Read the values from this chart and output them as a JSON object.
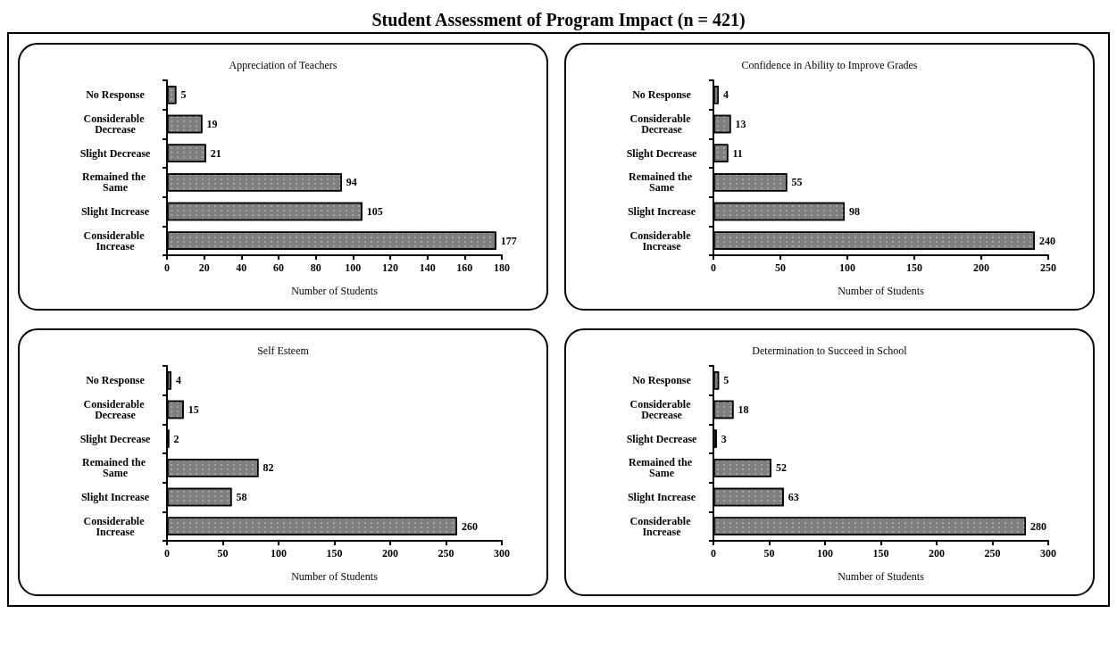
{
  "chart_data": [
    {
      "type": "bar",
      "orientation": "horizontal",
      "annotations": [
        "Student Assessment of Program Impact (n = 421)"
      ],
      "title": "Appreciation of Teachers",
      "xlabel": "Number of Students",
      "categories": [
        "No Response",
        "Considerable Decrease",
        "Slight Decrease",
        "Remained the Same",
        "Slight Increase",
        "Considerable Increase"
      ],
      "values": [
        5,
        19,
        21,
        94,
        105,
        177
      ],
      "color": "#7f7f7f",
      "xlim": [
        0,
        180
      ],
      "xticks": [
        0,
        20,
        40,
        60,
        80,
        100,
        120,
        140,
        160,
        180
      ],
      "data_labels": true,
      "grid": false
    },
    {
      "type": "bar",
      "orientation": "horizontal",
      "title": "Confidence in Ability to Improve Grades",
      "xlabel": "Number of Students",
      "categories": [
        "No Response",
        "Considerable Decrease",
        "Slight Decrease",
        "Remained the Same",
        "Slight Increase",
        "Considerable Increase"
      ],
      "values": [
        4,
        13,
        11,
        55,
        98,
        240
      ],
      "color": "#7f7f7f",
      "xlim": [
        0,
        250
      ],
      "xticks": [
        0,
        50,
        100,
        150,
        200,
        250
      ],
      "data_labels": true,
      "grid": false
    },
    {
      "type": "bar",
      "orientation": "horizontal",
      "title": "Self Esteem",
      "xlabel": "Number of Students",
      "categories": [
        "No Response",
        "Considerable Decrease",
        "Slight Decrease",
        "Remained the Same",
        "Slight Increase",
        "Considerable Increase"
      ],
      "values": [
        4,
        15,
        2,
        82,
        58,
        260
      ],
      "color": "#7f7f7f",
      "xlim": [
        0,
        300
      ],
      "xticks": [
        0,
        50,
        100,
        150,
        200,
        250,
        300
      ],
      "data_labels": true,
      "grid": false
    },
    {
      "type": "bar",
      "orientation": "horizontal",
      "title": "Determination to Succeed in School",
      "xlabel": "Number of Students",
      "categories": [
        "No Response",
        "Considerable Decrease",
        "Slight Decrease",
        "Remained the Same",
        "Slight Increase",
        "Considerable Increase"
      ],
      "values": [
        5,
        18,
        3,
        52,
        63,
        280
      ],
      "color": "#7f7f7f",
      "xlim": [
        0,
        300
      ],
      "xticks": [
        0,
        50,
        100,
        150,
        200,
        250,
        300
      ],
      "data_labels": true,
      "grid": false
    }
  ]
}
